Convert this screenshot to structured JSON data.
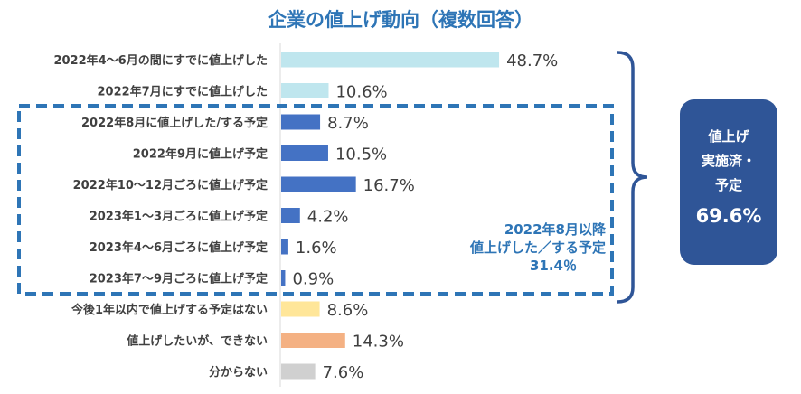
{
  "chart_data": {
    "type": "bar",
    "orientation": "horizontal",
    "title": "企業の値上げ動向（複数回答）",
    "categories": [
      "2022年4～6月の間にすでに値上げした",
      "2022年7月にすでに値上げした",
      "2022年8月に値上げした/する予定",
      "2022年9月に値上げ予定",
      "2022年10～12月ごろに値上げ予定",
      "2023年1～3月ごろに値上げ予定",
      "2023年4～6月ごろに値上げ予定",
      "2023年7～9月ごろに値上げ予定",
      "今後1年以内で値上げする予定はない",
      "値上げしたいが、できない",
      "分からない"
    ],
    "values": [
      48.7,
      10.6,
      8.7,
      10.5,
      16.7,
      4.2,
      1.6,
      0.9,
      8.6,
      14.3,
      7.6
    ],
    "value_labels": [
      "48.7%",
      "10.6%",
      "8.7%",
      "10.5%",
      "16.7%",
      "4.2%",
      "1.6%",
      "0.9%",
      "8.6%",
      "14.3%",
      "7.6%"
    ],
    "bar_colors": [
      "#bfe6ee",
      "#bfe6ee",
      "#4472c4",
      "#4472c4",
      "#4472c4",
      "#4472c4",
      "#4472c4",
      "#4472c4",
      "#ffe699",
      "#f4b183",
      "#d0d0d0"
    ],
    "grid": false,
    "legend": "none"
  },
  "annotations": {
    "dashed_group": {
      "line1": "2022年8月以降",
      "line2": "値上げした／する予定",
      "total": "31.4％",
      "color": "#2e75b6"
    },
    "total_box": {
      "line1": "値上げ",
      "line2": "実施済・",
      "line3": "予定",
      "total": "69.6%",
      "color": "#2f5597"
    }
  }
}
